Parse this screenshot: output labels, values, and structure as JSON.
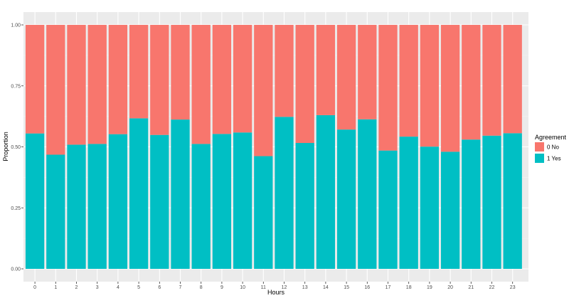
{
  "chart_data": {
    "type": "bar",
    "stacked": true,
    "xlabel": "Hours",
    "ylabel": "Proportion",
    "ylim": [
      0,
      1
    ],
    "yticks": [
      "0.00",
      "0.25",
      "0.50",
      "0.75",
      "1.00"
    ],
    "categories": [
      "0",
      "1",
      "2",
      "3",
      "4",
      "5",
      "6",
      "7",
      "8",
      "9",
      "10",
      "11",
      "12",
      "13",
      "14",
      "15",
      "16",
      "17",
      "18",
      "19",
      "20",
      "21",
      "22",
      "23"
    ],
    "legend": {
      "title": "Agreement",
      "position": "right"
    },
    "grid": true,
    "series": [
      {
        "name": "1 Yes",
        "color": "#00BFC4",
        "values": [
          0.555,
          0.468,
          0.509,
          0.512,
          0.552,
          0.617,
          0.549,
          0.612,
          0.512,
          0.553,
          0.559,
          0.462,
          0.623,
          0.516,
          0.63,
          0.571,
          0.613,
          0.485,
          0.542,
          0.501,
          0.48,
          0.53,
          0.546,
          0.556
        ]
      },
      {
        "name": "0 No",
        "color": "#F8766D",
        "values": [
          0.445,
          0.532,
          0.491,
          0.488,
          0.448,
          0.383,
          0.451,
          0.388,
          0.488,
          0.447,
          0.441,
          0.538,
          0.377,
          0.484,
          0.37,
          0.429,
          0.387,
          0.515,
          0.458,
          0.499,
          0.52,
          0.47,
          0.454,
          0.444
        ]
      }
    ]
  }
}
